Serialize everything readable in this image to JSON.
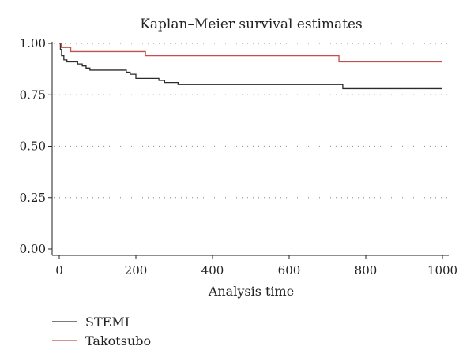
{
  "chart_data": {
    "type": "line",
    "step": true,
    "title": "Kaplan–Meier survival estimates",
    "xlabel": "Analysis time",
    "ylabel": "",
    "xlim": [
      0,
      1000
    ],
    "ylim": [
      0,
      1
    ],
    "xticks": [
      0,
      200,
      400,
      600,
      800,
      1000
    ],
    "xtick_labels": [
      "0",
      "200",
      "400",
      "600",
      "800",
      "1000"
    ],
    "yticks": [
      0,
      0.25,
      0.5,
      0.75,
      1
    ],
    "ytick_labels": [
      "0.00",
      "0.25",
      "0.50",
      "0.75",
      "1.00"
    ],
    "grid": "horizontal-dotted",
    "legend_position": "bottom-left",
    "series": [
      {
        "name": "STEMI",
        "color": "#2b2b2b",
        "x": [
          0,
          3,
          6,
          12,
          20,
          48,
          60,
          70,
          80,
          175,
          185,
          200,
          260,
          275,
          310,
          740,
          1000
        ],
        "y": [
          1.0,
          0.97,
          0.94,
          0.92,
          0.91,
          0.9,
          0.89,
          0.88,
          0.87,
          0.86,
          0.85,
          0.83,
          0.82,
          0.81,
          0.8,
          0.78,
          0.78
        ]
      },
      {
        "name": "Takotsubo",
        "color": "#c0504d",
        "x": [
          0,
          5,
          30,
          225,
          730,
          1000
        ],
        "y": [
          1.0,
          0.98,
          0.96,
          0.94,
          0.91,
          0.91
        ]
      }
    ]
  }
}
